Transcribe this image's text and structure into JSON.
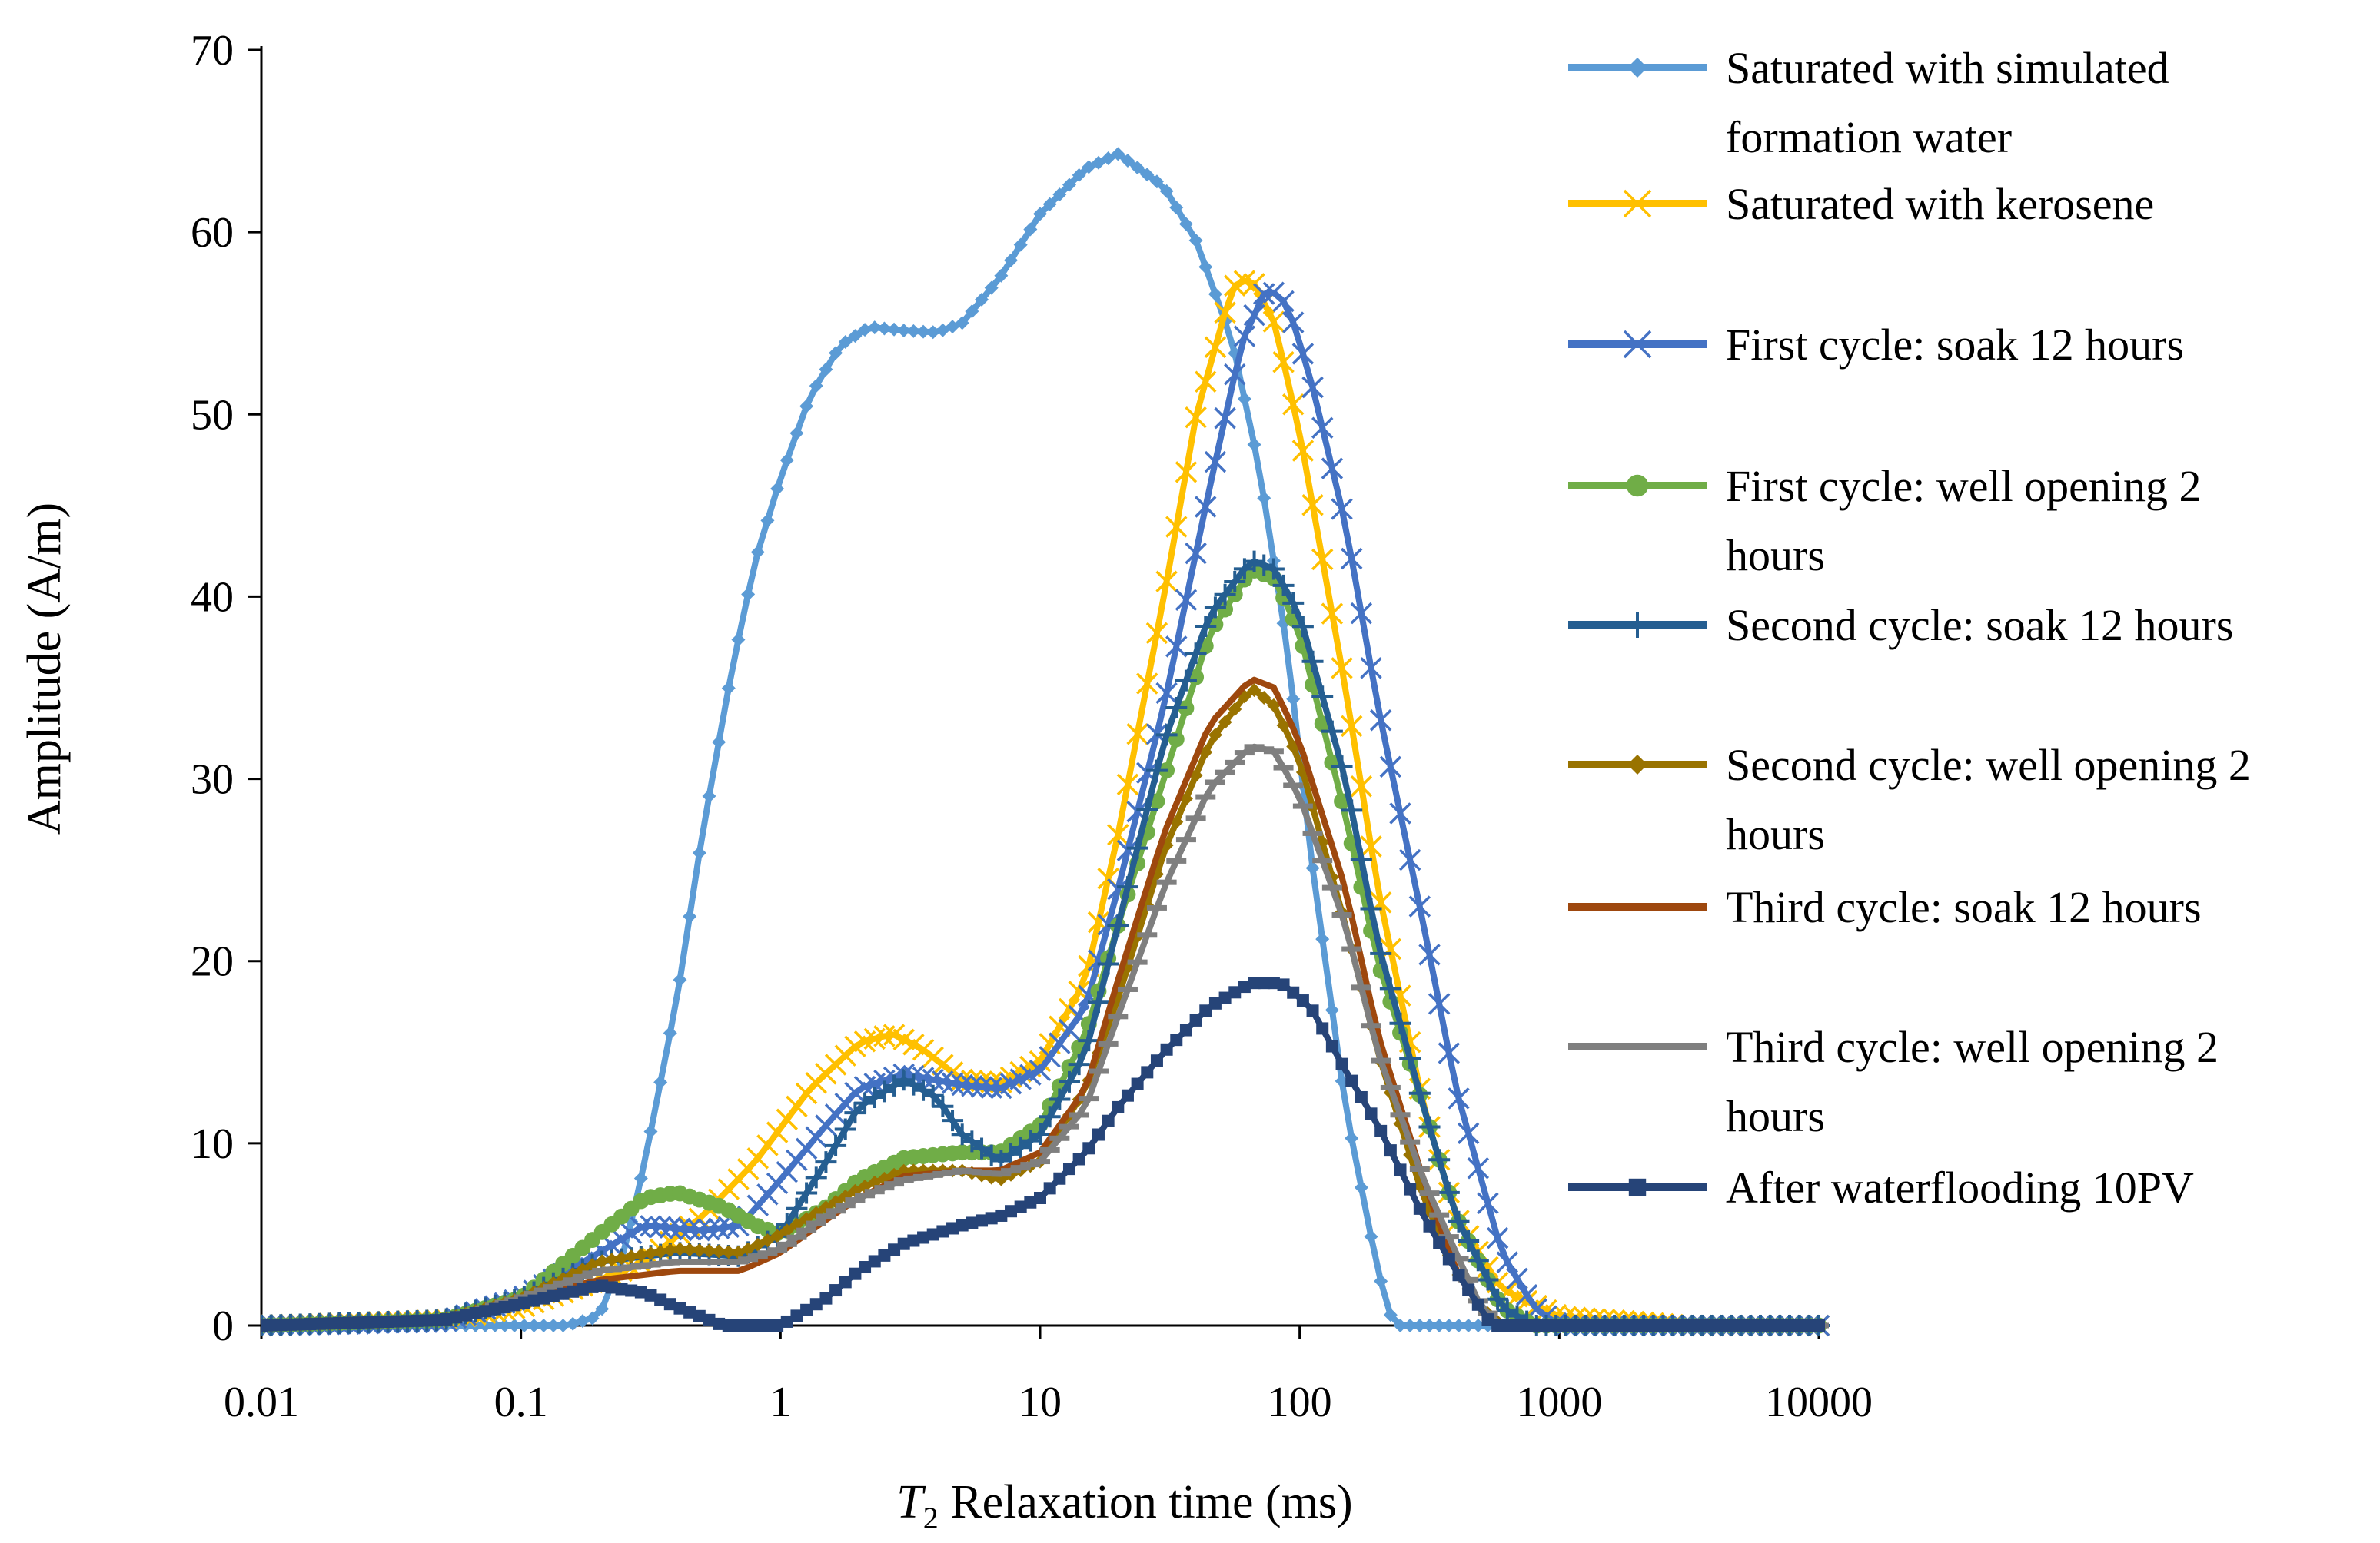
{
  "chart_data": {
    "type": "line",
    "title": "",
    "xlabel": {
      "italic": "T",
      "sub": "2",
      "rest": " Relaxation time (ms)"
    },
    "ylabel": "Amplitude (A/m)",
    "xscale": "log",
    "xlim": [
      0.01,
      10000
    ],
    "ylim": [
      0,
      70
    ],
    "x_ticks": [
      "0.01",
      "0.1",
      "1",
      "10",
      "100",
      "1000",
      "10000"
    ],
    "y_ticks": [
      "0",
      "10",
      "20",
      "30",
      "40",
      "50",
      "60",
      "70"
    ],
    "grid": false,
    "legend_position": "right",
    "series": [
      {
        "name": "Saturated with simulated formation water",
        "legend_lines": [
          "Saturated with simulated",
          "formation water"
        ],
        "color": "#5B9BD5",
        "marker": "diamond",
        "points": [
          [
            0.01,
            0
          ],
          [
            0.05,
            0
          ],
          [
            0.15,
            0
          ],
          [
            0.2,
            0.5
          ],
          [
            0.25,
            4
          ],
          [
            0.3,
            9
          ],
          [
            0.4,
            18
          ],
          [
            0.5,
            27
          ],
          [
            0.65,
            36
          ],
          [
            0.8,
            42
          ],
          [
            1,
            46.5
          ],
          [
            1.3,
            51
          ],
          [
            1.7,
            53.8
          ],
          [
            2.2,
            54.8
          ],
          [
            3,
            54.6
          ],
          [
            4,
            54.5
          ],
          [
            5,
            55
          ],
          [
            7,
            57.5
          ],
          [
            10,
            61
          ],
          [
            15,
            63.5
          ],
          [
            20,
            64.3
          ],
          [
            30,
            62.5
          ],
          [
            40,
            59.5
          ],
          [
            55,
            54
          ],
          [
            70,
            47
          ],
          [
            90,
            37
          ],
          [
            110,
            26
          ],
          [
            150,
            12
          ],
          [
            200,
            3
          ],
          [
            230,
            0
          ],
          [
            500,
            0
          ],
          [
            10000,
            0
          ]
        ]
      },
      {
        "name": "Saturated with kerosene",
        "legend_lines": [
          "Saturated with kerosene"
        ],
        "color": "#FFC000",
        "marker": "x",
        "points": [
          [
            0.01,
            0
          ],
          [
            0.05,
            0.3
          ],
          [
            0.1,
            1
          ],
          [
            0.2,
            2.5
          ],
          [
            0.3,
            3.5
          ],
          [
            0.5,
            6
          ],
          [
            0.8,
            9
          ],
          [
            1.3,
            13
          ],
          [
            2,
            15.5
          ],
          [
            2.7,
            16
          ],
          [
            3.5,
            15.2
          ],
          [
            5,
            13.5
          ],
          [
            7,
            13.3
          ],
          [
            10,
            14.5
          ],
          [
            15,
            19
          ],
          [
            20,
            27
          ],
          [
            30,
            40
          ],
          [
            40,
            50
          ],
          [
            55,
            57
          ],
          [
            65,
            57.5
          ],
          [
            80,
            55
          ],
          [
            100,
            49
          ],
          [
            150,
            35
          ],
          [
            200,
            24
          ],
          [
            300,
            12
          ],
          [
            400,
            6
          ],
          [
            600,
            2
          ],
          [
            1000,
            0.5
          ],
          [
            2000,
            0.2
          ],
          [
            3000,
            0
          ],
          [
            10000,
            0
          ]
        ]
      },
      {
        "name": "First cycle: soak 12 hours",
        "legend_lines": [
          "First cycle: soak 12 hours"
        ],
        "color": "#4472C4",
        "marker": "x",
        "points": [
          [
            0.01,
            0
          ],
          [
            0.05,
            0.2
          ],
          [
            0.1,
            1.5
          ],
          [
            0.2,
            4
          ],
          [
            0.3,
            5.5
          ],
          [
            0.5,
            5.2
          ],
          [
            0.7,
            5.5
          ],
          [
            1,
            8
          ],
          [
            1.5,
            11
          ],
          [
            2,
            13
          ],
          [
            3,
            13.8
          ],
          [
            5,
            13.2
          ],
          [
            7,
            13
          ],
          [
            10,
            14
          ],
          [
            15,
            17.5
          ],
          [
            20,
            24
          ],
          [
            30,
            34
          ],
          [
            45,
            46
          ],
          [
            60,
            54
          ],
          [
            75,
            57
          ],
          [
            90,
            56
          ],
          [
            110,
            52
          ],
          [
            150,
            44
          ],
          [
            200,
            34
          ],
          [
            300,
            22
          ],
          [
            400,
            13
          ],
          [
            600,
            4
          ],
          [
            800,
            1
          ],
          [
            1000,
            0
          ],
          [
            10000,
            0
          ]
        ]
      },
      {
        "name": "First cycle: well opening 2 hours",
        "legend_lines": [
          "First cycle: well opening 2",
          "hours"
        ],
        "color": "#70AD47",
        "marker": "circle",
        "points": [
          [
            0.01,
            0
          ],
          [
            0.05,
            0.3
          ],
          [
            0.1,
            1.5
          ],
          [
            0.2,
            5
          ],
          [
            0.3,
            7
          ],
          [
            0.4,
            7.3
          ],
          [
            0.6,
            6.5
          ],
          [
            0.8,
            5.5
          ],
          [
            1,
            5
          ],
          [
            1.5,
            6.5
          ],
          [
            2,
            8
          ],
          [
            3,
            9.2
          ],
          [
            5,
            9.5
          ],
          [
            7,
            9.5
          ],
          [
            10,
            11
          ],
          [
            15,
            16
          ],
          [
            20,
            22
          ],
          [
            30,
            30
          ],
          [
            45,
            38
          ],
          [
            65,
            41.5
          ],
          [
            80,
            41
          ],
          [
            100,
            38
          ],
          [
            150,
            28
          ],
          [
            200,
            20
          ],
          [
            300,
            12
          ],
          [
            400,
            6
          ],
          [
            600,
            1
          ],
          [
            800,
            0
          ],
          [
            10000,
            0
          ]
        ]
      },
      {
        "name": "Second cycle: soak 12 hours",
        "legend_lines": [
          "Second cycle: soak 12 hours"
        ],
        "color": "#255E91",
        "marker": "plus",
        "points": [
          [
            0.01,
            0
          ],
          [
            0.05,
            0.3
          ],
          [
            0.1,
            1.5
          ],
          [
            0.2,
            3.5
          ],
          [
            0.4,
            4
          ],
          [
            0.7,
            3.8
          ],
          [
            1,
            5
          ],
          [
            1.5,
            9
          ],
          [
            2,
            12
          ],
          [
            3,
            13.5
          ],
          [
            4,
            12.5
          ],
          [
            5,
            10.5
          ],
          [
            7,
            9
          ],
          [
            10,
            10.5
          ],
          [
            15,
            15
          ],
          [
            20,
            22
          ],
          [
            30,
            32
          ],
          [
            45,
            39
          ],
          [
            65,
            42
          ],
          [
            80,
            41.5
          ],
          [
            100,
            39
          ],
          [
            150,
            30
          ],
          [
            200,
            21
          ],
          [
            300,
            12
          ],
          [
            400,
            6
          ],
          [
            600,
            1
          ],
          [
            800,
            0
          ],
          [
            10000,
            0
          ]
        ]
      },
      {
        "name": "Second cycle: well opening 2 hours",
        "legend_lines": [
          "Second cycle: well opening 2",
          "hours"
        ],
        "color": "#997300",
        "marker": "diamond",
        "points": [
          [
            0.01,
            0
          ],
          [
            0.05,
            0.3
          ],
          [
            0.1,
            1.5
          ],
          [
            0.2,
            3.5
          ],
          [
            0.4,
            4.2
          ],
          [
            0.7,
            4
          ],
          [
            1,
            5
          ],
          [
            1.5,
            6.5
          ],
          [
            2,
            7.5
          ],
          [
            3,
            8.5
          ],
          [
            5,
            8.5
          ],
          [
            7,
            8
          ],
          [
            10,
            9
          ],
          [
            15,
            13
          ],
          [
            20,
            18
          ],
          [
            30,
            26
          ],
          [
            45,
            32
          ],
          [
            65,
            35
          ],
          [
            80,
            34
          ],
          [
            100,
            31
          ],
          [
            150,
            22
          ],
          [
            200,
            15
          ],
          [
            300,
            7
          ],
          [
            400,
            3
          ],
          [
            500,
            1
          ],
          [
            600,
            0
          ],
          [
            10000,
            0
          ]
        ]
      },
      {
        "name": "Third cycle: soak 12 hours",
        "legend_lines": [
          "Third cycle: soak 12 hours"
        ],
        "color": "#9E480E",
        "marker": "none",
        "points": [
          [
            0.01,
            0
          ],
          [
            0.05,
            0.3
          ],
          [
            0.1,
            1.5
          ],
          [
            0.2,
            2.5
          ],
          [
            0.4,
            3
          ],
          [
            0.7,
            3
          ],
          [
            1,
            4
          ],
          [
            1.5,
            5.8
          ],
          [
            2,
            7
          ],
          [
            3,
            8.2
          ],
          [
            5,
            8.5
          ],
          [
            7,
            8.5
          ],
          [
            10,
            9.5
          ],
          [
            15,
            13
          ],
          [
            20,
            19
          ],
          [
            30,
            27
          ],
          [
            45,
            33
          ],
          [
            65,
            35.5
          ],
          [
            80,
            35
          ],
          [
            100,
            32
          ],
          [
            150,
            24
          ],
          [
            200,
            16
          ],
          [
            300,
            8
          ],
          [
            400,
            3
          ],
          [
            550,
            0
          ],
          [
            10000,
            0
          ]
        ]
      },
      {
        "name": "Third cycle: well opening 2 hours",
        "legend_lines": [
          "Third cycle: well opening 2",
          "hours"
        ],
        "color": "#7F7F7F",
        "marker": "dash",
        "points": [
          [
            0.01,
            0
          ],
          [
            0.05,
            0.3
          ],
          [
            0.1,
            1.5
          ],
          [
            0.2,
            3
          ],
          [
            0.4,
            3.5
          ],
          [
            0.7,
            3.5
          ],
          [
            1,
            4.2
          ],
          [
            1.5,
            6
          ],
          [
            2,
            7
          ],
          [
            3,
            8
          ],
          [
            5,
            8.5
          ],
          [
            7,
            8.3
          ],
          [
            10,
            9
          ],
          [
            15,
            12
          ],
          [
            20,
            17
          ],
          [
            30,
            24
          ],
          [
            45,
            29.5
          ],
          [
            65,
            31.8
          ],
          [
            80,
            31.5
          ],
          [
            100,
            29
          ],
          [
            150,
            22
          ],
          [
            200,
            15
          ],
          [
            300,
            8
          ],
          [
            400,
            4
          ],
          [
            500,
            1
          ],
          [
            600,
            0
          ],
          [
            10000,
            0
          ]
        ]
      },
      {
        "name": "After waterflooding 10PV",
        "legend_lines": [
          "After waterflooding 10PV"
        ],
        "color": "#264478",
        "marker": "square",
        "points": [
          [
            0.01,
            0
          ],
          [
            0.05,
            0.3
          ],
          [
            0.1,
            1.2
          ],
          [
            0.2,
            2.2
          ],
          [
            0.3,
            1.8
          ],
          [
            0.4,
            1
          ],
          [
            0.6,
            0
          ],
          [
            1,
            0
          ],
          [
            1.5,
            1.5
          ],
          [
            2,
            3
          ],
          [
            3,
            4.5
          ],
          [
            5,
            5.5
          ],
          [
            7,
            6
          ],
          [
            10,
            7
          ],
          [
            15,
            9.5
          ],
          [
            20,
            12
          ],
          [
            30,
            15
          ],
          [
            45,
            17.5
          ],
          [
            65,
            18.8
          ],
          [
            85,
            18.8
          ],
          [
            110,
            17.5
          ],
          [
            150,
            14
          ],
          [
            200,
            11
          ],
          [
            300,
            6
          ],
          [
            400,
            3
          ],
          [
            550,
            0
          ],
          [
            10000,
            0
          ]
        ]
      }
    ]
  }
}
